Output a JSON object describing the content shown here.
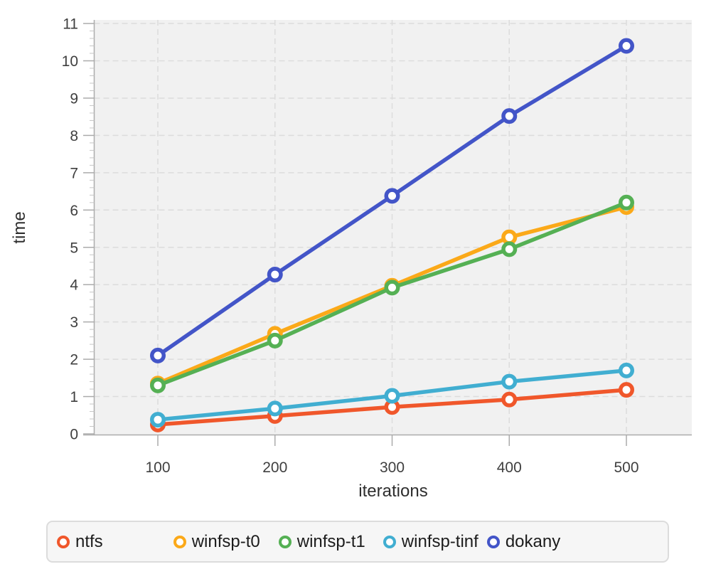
{
  "chart_data": {
    "type": "line",
    "title": "",
    "xlabel": "iterations",
    "ylabel": "time",
    "x": [
      100,
      200,
      300,
      400,
      500
    ],
    "xticks": [
      "100",
      "200",
      "300",
      "400",
      "500"
    ],
    "yticks": [
      "0",
      "1",
      "2",
      "3",
      "4",
      "5",
      "6",
      "7",
      "8",
      "9",
      "10",
      "11"
    ],
    "xlim": [
      46,
      556
    ],
    "ylim": [
      0,
      11.1
    ],
    "grid": "dashed",
    "marker": "open-circle",
    "legend_position": "bottom",
    "plot_background": "#f1f1f1",
    "gridline_color": "#dcdcdc",
    "axis_color": "#ababab",
    "minor_tick_color": "#c6c6c6",
    "tick_label_color": "#3f3f3f",
    "series": [
      {
        "name": "ntfs",
        "color": "#f0572b",
        "values": [
          0.25,
          0.48,
          0.72,
          0.92,
          1.18
        ]
      },
      {
        "name": "winfsp-t0",
        "color": "#fba919",
        "values": [
          1.35,
          2.68,
          3.97,
          5.27,
          6.08
        ]
      },
      {
        "name": "winfsp-t1",
        "color": "#55b054",
        "values": [
          1.3,
          2.5,
          3.92,
          4.95,
          6.2
        ]
      },
      {
        "name": "winfsp-tinf",
        "color": "#41aed1",
        "values": [
          0.38,
          0.68,
          1.02,
          1.4,
          1.7
        ]
      },
      {
        "name": "dokany",
        "color": "#4355c8",
        "values": [
          2.1,
          4.27,
          6.38,
          8.52,
          10.4
        ]
      }
    ]
  }
}
